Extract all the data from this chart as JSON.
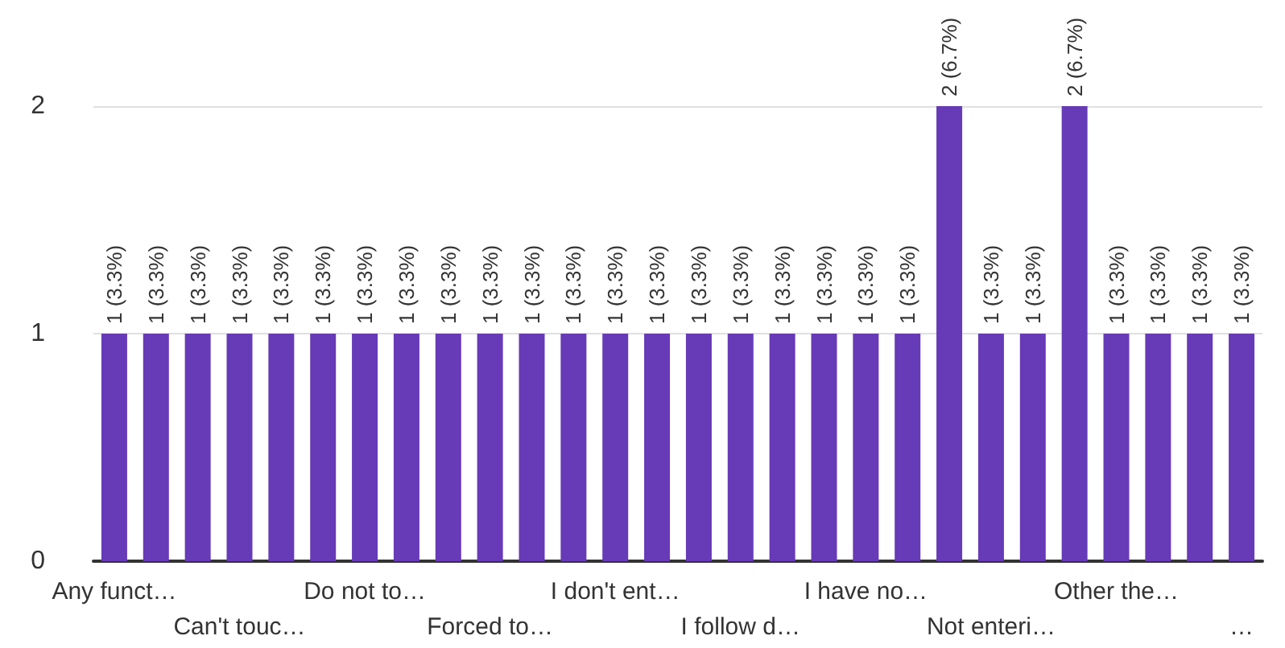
{
  "chart_data": {
    "type": "bar",
    "categories": [
      "Any funct…",
      null,
      null,
      "Can't touc…",
      null,
      null,
      "Do not to…",
      null,
      null,
      "Forced to…",
      null,
      null,
      "I don't ent…",
      null,
      null,
      "I follow d…",
      null,
      null,
      "I have no…",
      null,
      null,
      "Not enteri…",
      null,
      null,
      "Other the…",
      null,
      null,
      "…"
    ],
    "values": [
      1,
      1,
      1,
      1,
      1,
      1,
      1,
      1,
      1,
      1,
      1,
      1,
      1,
      1,
      1,
      1,
      1,
      1,
      1,
      1,
      2,
      1,
      1,
      2,
      1,
      1,
      1,
      1
    ],
    "value_labels": [
      "1 (3.3%)",
      "1 (3.3%)",
      "1 (3.3%)",
      "1 (3.3%)",
      "1 (3.3%)",
      "1 (3.3%)",
      "1 (3.3%)",
      "1 (3.3%)",
      "1 (3.3%)",
      "1 (3.3%)",
      "1 (3.3%)",
      "1 (3.3%)",
      "1 (3.3%)",
      "1 (3.3%)",
      "1 (3.3%)",
      "1 (3.3%)",
      "1 (3.3%)",
      "1 (3.3%)",
      "1 (3.3%)",
      "1 (3.3%)",
      "2 (6.7%)",
      "1 (3.3%)",
      "1 (3.3%)",
      "2 (6.7%)",
      "1 (3.3%)",
      "1 (3.3%)",
      "1 (3.3%)",
      "1 (3.3%)"
    ],
    "color": "#673ab7",
    "ylim": [
      0,
      2
    ],
    "yticks": [
      0,
      1,
      2
    ],
    "grid": "y"
  }
}
